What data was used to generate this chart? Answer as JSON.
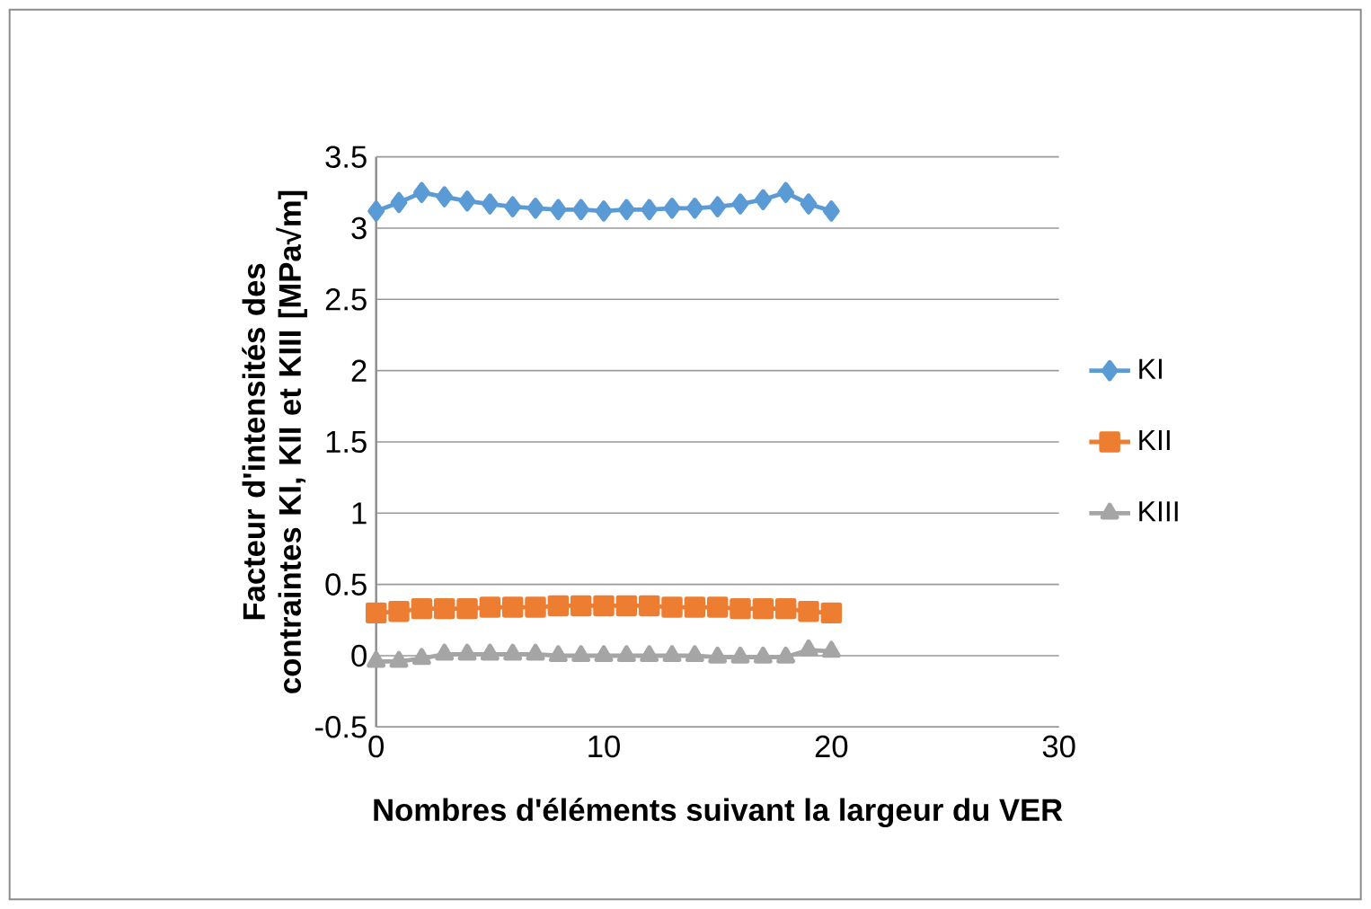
{
  "chart_data": {
    "type": "line",
    "xlabel": "Nombres d'éléments suivant la largeur du VER",
    "ylabel": "Facteur d'intensités des contraintes KI, KII et KIII [MPa√m]",
    "x": [
      0,
      1,
      2,
      3,
      4,
      5,
      6,
      7,
      8,
      9,
      10,
      11,
      12,
      13,
      14,
      15,
      16,
      17,
      18,
      19,
      20
    ],
    "series": [
      {
        "name": "KI",
        "color": "#5b9bd5",
        "marker": "diamond",
        "values": [
          3.12,
          3.18,
          3.25,
          3.22,
          3.19,
          3.17,
          3.15,
          3.14,
          3.13,
          3.13,
          3.12,
          3.13,
          3.13,
          3.14,
          3.14,
          3.15,
          3.17,
          3.2,
          3.25,
          3.17,
          3.12
        ]
      },
      {
        "name": "KII",
        "color": "#ed7d31",
        "marker": "square",
        "values": [
          0.3,
          0.31,
          0.33,
          0.33,
          0.33,
          0.34,
          0.34,
          0.34,
          0.35,
          0.35,
          0.35,
          0.35,
          0.35,
          0.34,
          0.34,
          0.34,
          0.33,
          0.33,
          0.33,
          0.31,
          0.3
        ]
      },
      {
        "name": "KIII",
        "color": "#a5a5a5",
        "marker": "triangle",
        "values": [
          -0.04,
          -0.04,
          -0.02,
          0.01,
          0.01,
          0.01,
          0.01,
          0.01,
          0,
          0,
          0,
          0,
          0,
          0,
          0,
          -0.01,
          -0.01,
          -0.01,
          -0.01,
          0.04,
          0.03
        ]
      }
    ],
    "xlim": [
      0,
      30
    ],
    "xticks": [
      0,
      10,
      20,
      30
    ],
    "ylim": [
      -0.5,
      3.5
    ],
    "yticks": [
      -0.5,
      0,
      0.5,
      1,
      1.5,
      2,
      2.5,
      3,
      3.5
    ],
    "grid": "y",
    "legend": "right",
    "line_style": "solid"
  }
}
